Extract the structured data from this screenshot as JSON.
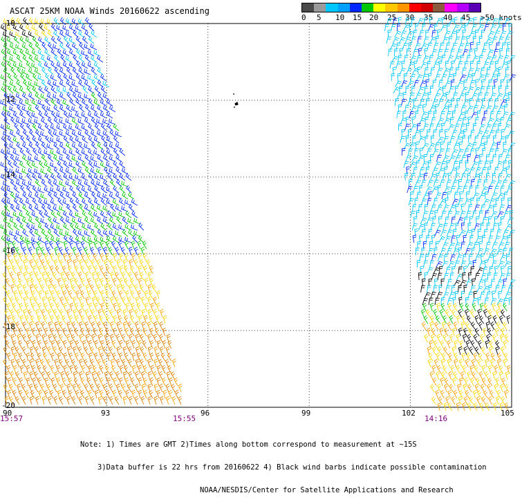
{
  "title": "ASCAT 25KM NOAA Winds 20160622 ascending",
  "scale": {
    "labels": [
      "0",
      "5",
      "10",
      "15",
      "20",
      "25",
      "30",
      "35",
      "40",
      "45",
      ">50 knots"
    ],
    "colors": [
      "#4a4a4a",
      "#9a9a9a",
      "#00c8ff",
      "#00a0ff",
      "#0028ff",
      "#00c800",
      "#ffff00",
      "#ffc800",
      "#ff9600",
      "#ff0000",
      "#d20000",
      "#8c5a3c",
      "#ff00ff",
      "#b400ff",
      "#5a00b4"
    ]
  },
  "map": {
    "lon_ticks": [
      "90",
      "93",
      "96",
      "99",
      "102",
      "105"
    ],
    "lat_ticks": [
      "-10",
      "-12",
      "-14",
      "-16",
      "-18",
      "-20"
    ],
    "times": [
      "15:57",
      "15:55",
      "14:16"
    ],
    "barb_colors": {
      "cyan": "#00c8ff",
      "blue": "#0028ff",
      "green": "#00c800",
      "yellow": "#ffd700",
      "orange": "#ffa000",
      "dark_orange": "#e08000",
      "black": "#000000"
    }
  },
  "notes": {
    "line1": "Note: 1) Times are GMT 2)Times along bottom correspond to measurement at ~15S",
    "line2": "3)Data buffer is 22 hrs from 20160622 4) Black wind barbs indicate possible contamination",
    "line3": "NOAA/NESDIS/Center for Satellite Applications and Research"
  }
}
